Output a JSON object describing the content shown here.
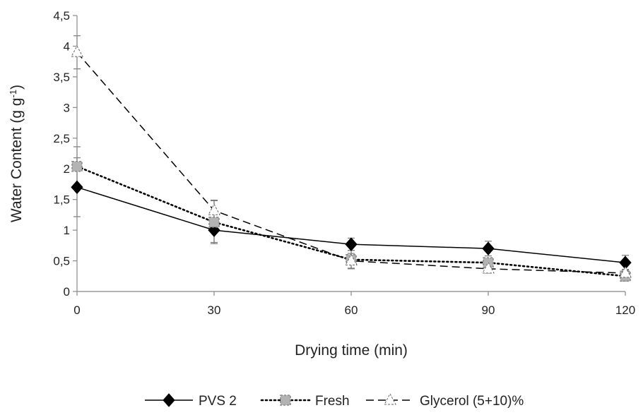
{
  "chart_data": {
    "type": "line",
    "title": "",
    "xlabel": "Drying time (min)",
    "ylabel": "Water Content (g g",
    "ylabel_sup": "-1",
    "ylabel_end": ")",
    "x": [
      0,
      30,
      60,
      90,
      120
    ],
    "x_tick_labels": [
      "0",
      "30",
      "60",
      "90",
      "120"
    ],
    "ylim": [
      0,
      4.5
    ],
    "y_ticks": [
      0,
      0.5,
      1,
      1.5,
      2,
      2.5,
      3,
      3.5,
      4,
      4.5
    ],
    "y_tick_labels": [
      "0",
      "0,5",
      "1",
      "1,5",
      "2",
      "2,5",
      "3",
      "3,5",
      "4",
      "4,5"
    ],
    "grid": false,
    "legend_position": "bottom",
    "series": [
      {
        "name": "PVS 2",
        "values": [
          1.7,
          1.0,
          0.77,
          0.7,
          0.47
        ],
        "errors": [
          0.48,
          0.2,
          0.1,
          0.12,
          0.12
        ],
        "line_style": "solid",
        "marker": "diamond",
        "color": "#000000",
        "marker_fill": "#000000"
      },
      {
        "name": "Fresh",
        "values": [
          2.04,
          1.13,
          0.52,
          0.47,
          0.25
        ],
        "errors": [
          0.32,
          0.35,
          0.15,
          0.07,
          0.08
        ],
        "line_style": "dotted",
        "marker": "square",
        "color": "#000000",
        "marker_fill": "#b3b3b3"
      },
      {
        "name": "Glycerol (5+10)%",
        "values": [
          3.9,
          1.32,
          0.5,
          0.37,
          0.3
        ],
        "errors": [
          0.27,
          0.17,
          0.12,
          0.07,
          0.06
        ],
        "line_style": "dashed",
        "marker": "triangle",
        "color": "#000000",
        "marker_fill": "#ffffff"
      }
    ]
  }
}
